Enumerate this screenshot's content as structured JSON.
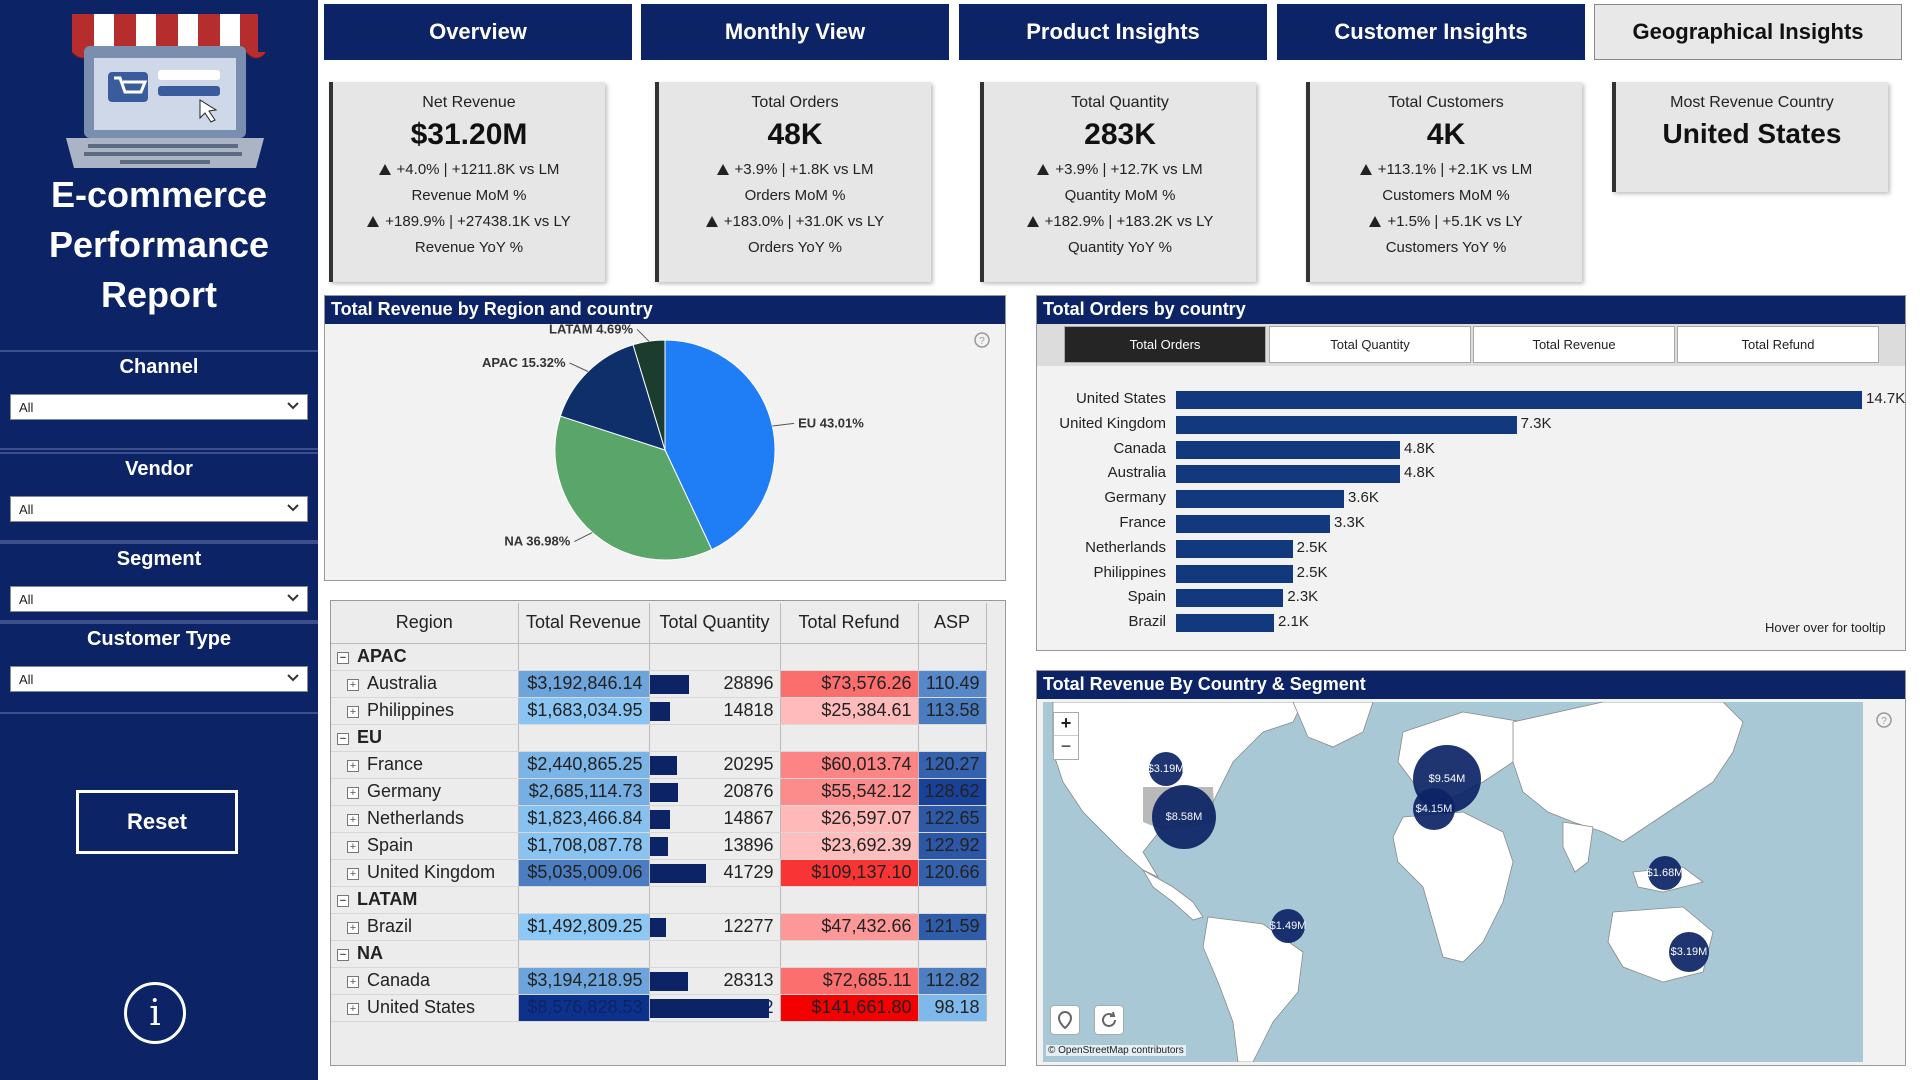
{
  "app": {
    "title_line1": "E-commerce",
    "title_line2": "Performance",
    "title_line3": "Report"
  },
  "tabs": [
    {
      "label": "Overview"
    },
    {
      "label": "Monthly View"
    },
    {
      "label": "Product Insights"
    },
    {
      "label": "Customer Insights"
    },
    {
      "label": "Geographical Insights",
      "active": true
    }
  ],
  "filters": [
    {
      "label": "Channel",
      "value": "All"
    },
    {
      "label": "Vendor",
      "value": "All"
    },
    {
      "label": "Segment",
      "value": "All"
    },
    {
      "label": "Customer Type",
      "value": "All"
    }
  ],
  "reset_label": "Reset",
  "info_label": "i",
  "kpis": [
    {
      "title": "Net Revenue",
      "value": "$31.20M",
      "mom": "+4.0% | +1211.8K vs LM",
      "mom_label": "Revenue MoM %",
      "yoy": "+189.9% | +27438.1K vs LY",
      "yoy_label": "Revenue YoY %"
    },
    {
      "title": "Total Orders",
      "value": "48K",
      "mom": "+3.9% | +1.8K vs LM",
      "mom_label": "Orders MoM %",
      "yoy": "+183.0% | +31.0K vs LY",
      "yoy_label": "Orders YoY %"
    },
    {
      "title": "Total Quantity",
      "value": "283K",
      "mom": "+3.9% | +12.7K vs LM",
      "mom_label": "Quantity MoM %",
      "yoy": "+182.9% | +183.2K vs LY",
      "yoy_label": "Quantity YoY %"
    },
    {
      "title": "Total Customers",
      "value": "4K",
      "mom": "+113.1% | +2.1K vs LM",
      "mom_label": "Customers MoM %",
      "yoy": "+1.5% | +5.1K vs LY",
      "yoy_label": "Customers YoY %"
    }
  ],
  "top_country": {
    "title": "Most Revenue Country",
    "value": "United States"
  },
  "pie_panel": {
    "title": "Total Revenue by Region and country"
  },
  "bar_panel": {
    "title": "Total Orders by country",
    "buttons": [
      "Total Orders",
      "Total Quantity",
      "Total Revenue",
      "Total Refund"
    ],
    "tooltip_hint": "Hover over for tooltip"
  },
  "map_panel": {
    "title": "Total Revenue By Country & Segment",
    "attribution": "© OpenStreetMap contributors",
    "zoom_in": "+",
    "zoom_out": "−",
    "bubbles": [
      {
        "label": "$3.19M",
        "name": "canada"
      },
      {
        "label": "$8.58M",
        "name": "united-states"
      },
      {
        "label": "$9.54M",
        "name": "united-kingdom"
      },
      {
        "label": "$4.15M",
        "name": "europe"
      },
      {
        "label": "$1.68M",
        "name": "philippines"
      },
      {
        "label": "$1.49M",
        "name": "brazil"
      },
      {
        "label": "$3.19M",
        "name": "australia"
      }
    ]
  },
  "matrix": {
    "headers": [
      "Region",
      "Total Revenue",
      "Total Quantity",
      "Total Refund",
      "ASP"
    ],
    "regions": [
      {
        "name": "APAC",
        "rows": [
          {
            "country": "Australia",
            "revenue": "$3,192,846.14",
            "quantity": "28896",
            "q": 28896,
            "refund": "$73,576.26",
            "asp": "110.49"
          },
          {
            "country": "Philippines",
            "revenue": "$1,683,034.95",
            "quantity": "14818",
            "q": 14818,
            "refund": "$25,384.61",
            "asp": "113.58"
          }
        ]
      },
      {
        "name": "EU",
        "rows": [
          {
            "country": "France",
            "revenue": "$2,440,865.25",
            "quantity": "20295",
            "q": 20295,
            "refund": "$60,013.74",
            "asp": "120.27"
          },
          {
            "country": "Germany",
            "revenue": "$2,685,114.73",
            "quantity": "20876",
            "q": 20876,
            "refund": "$55,542.12",
            "asp": "128.62"
          },
          {
            "country": "Netherlands",
            "revenue": "$1,823,466.84",
            "quantity": "14867",
            "q": 14867,
            "refund": "$26,597.07",
            "asp": "122.65"
          },
          {
            "country": "Spain",
            "revenue": "$1,708,087.78",
            "quantity": "13896",
            "q": 13896,
            "refund": "$23,692.39",
            "asp": "122.92"
          },
          {
            "country": "United Kingdom",
            "revenue": "$5,035,009.06",
            "quantity": "41729",
            "q": 41729,
            "refund": "$109,137.10",
            "asp": "120.66"
          }
        ]
      },
      {
        "name": "LATAM",
        "rows": [
          {
            "country": "Brazil",
            "revenue": "$1,492,809.25",
            "quantity": "12277",
            "q": 12277,
            "refund": "$47,432.66",
            "asp": "121.59"
          }
        ]
      },
      {
        "name": "NA",
        "rows": [
          {
            "country": "Canada",
            "revenue": "$3,194,218.95",
            "quantity": "28313",
            "q": 28313,
            "refund": "$72,685.11",
            "asp": "112.82"
          },
          {
            "country": "United States",
            "revenue": "$8,576,828.53",
            "quantity": "87362",
            "q": 87362,
            "refund": "$141,661.80",
            "asp": "98.18"
          }
        ]
      }
    ]
  },
  "chart_data": [
    {
      "type": "pie",
      "title": "Total Revenue by Region and country",
      "slices": [
        {
          "name": "EU",
          "value": 43.01,
          "label": "EU 43.01%",
          "color": "#1f7ef5"
        },
        {
          "name": "NA",
          "value": 36.98,
          "label": "NA 36.98%",
          "color": "#5aa56a"
        },
        {
          "name": "APAC",
          "value": 15.32,
          "label": "APAC 15.32%",
          "color": "#0f2f6b"
        },
        {
          "name": "LATAM",
          "value": 4.69,
          "label": "LATAM 4.69%",
          "color": "#1c3d2e"
        }
      ]
    },
    {
      "type": "bar",
      "title": "Total Orders by country",
      "categories": [
        "United States",
        "United Kingdom",
        "Canada",
        "Australia",
        "Germany",
        "France",
        "Netherlands",
        "Philippines",
        "Spain",
        "Brazil"
      ],
      "values": [
        14.7,
        7.3,
        4.8,
        4.8,
        3.6,
        3.3,
        2.5,
        2.5,
        2.3,
        2.1
      ],
      "value_labels": [
        "14.7K",
        "7.3K",
        "4.8K",
        "4.8K",
        "3.6K",
        "3.3K",
        "2.5K",
        "2.5K",
        "2.3K",
        "2.1K"
      ],
      "orientation": "horizontal",
      "color": "#12397d"
    }
  ]
}
